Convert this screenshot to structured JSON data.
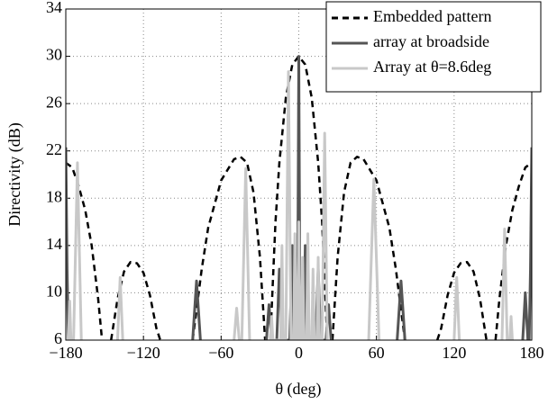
{
  "chart_data": {
    "type": "line",
    "xlabel": "θ (deg)",
    "ylabel": "Directivity (dB)",
    "xlim": [
      -180,
      180
    ],
    "xticks": [
      {
        "value": -180,
        "label": "−180"
      },
      {
        "value": -120,
        "label": "−120"
      },
      {
        "value": -60,
        "label": "−60"
      },
      0,
      60,
      120,
      180
    ],
    "ylim": [
      6,
      34
    ],
    "yticks": [
      6,
      10,
      14,
      18,
      22,
      26,
      30,
      34
    ],
    "grid": true,
    "legend": "upper right",
    "series": [
      {
        "name": "Embedded pattern",
        "color": "#000000",
        "style": "dashed",
        "x": [
          -180,
          -175,
          -170,
          -165,
          -160,
          -155,
          -152,
          -149,
          -145,
          -140,
          -135,
          -130,
          -125,
          -120,
          -115,
          -110,
          -107,
          -95,
          -82,
          -75,
          -70,
          -60,
          -50,
          -45,
          -40,
          -35,
          -30,
          -26,
          -24,
          -22,
          -18,
          -15,
          -10,
          -5,
          0,
          5,
          10,
          15,
          18,
          22,
          24,
          26,
          30,
          35,
          40,
          45,
          50,
          60,
          70,
          75,
          82,
          95,
          107,
          110,
          115,
          120,
          125,
          130,
          135,
          140,
          145,
          149,
          152,
          155,
          160,
          165,
          170,
          175,
          180
        ],
        "values": [
          21,
          20.6,
          19,
          17,
          14,
          9.5,
          6,
          null,
          6,
          9.5,
          11.8,
          12.6,
          12.5,
          11.7,
          9.8,
          7,
          6,
          null,
          6,
          12,
          15.5,
          19.5,
          21.3,
          21.5,
          21,
          18.5,
          13,
          6,
          null,
          6,
          16,
          21,
          26.5,
          29.3,
          30,
          29.3,
          26.5,
          21,
          16,
          6,
          null,
          6,
          13,
          18.5,
          21,
          21.5,
          21.3,
          19.5,
          15.5,
          12,
          6,
          null,
          6,
          7,
          9.8,
          11.7,
          12.5,
          12.6,
          11.8,
          9.5,
          6,
          null,
          6,
          9.5,
          14,
          17,
          19,
          20.6,
          21
        ]
      },
      {
        "name": "array at broadside",
        "color": "#555555",
        "style": "solid",
        "x": [
          -180,
          -179,
          -178,
          -170,
          -82,
          -79,
          -76,
          -50,
          -25,
          -23,
          -21,
          -17,
          -15,
          -13,
          -7,
          -5,
          -4,
          -3,
          -2,
          -1,
          0,
          1,
          2,
          3,
          4,
          5,
          7,
          13,
          15,
          17,
          21,
          23,
          25,
          50,
          76,
          79,
          82,
          150,
          173,
          175,
          177,
          178,
          179,
          180
        ],
        "values": [
          22.3,
          12,
          6,
          null,
          6,
          11,
          6,
          null,
          6,
          9,
          6,
          6,
          12,
          6,
          6,
          14,
          6,
          6,
          10,
          6,
          30,
          6,
          10,
          6,
          6,
          14,
          6,
          6,
          12,
          6,
          6,
          9,
          6,
          null,
          6,
          11,
          6,
          null,
          6,
          10,
          6,
          6,
          12,
          22.3
        ]
      },
      {
        "name": "Array at θ=8.6deg",
        "color": "#c8c8c8",
        "style": "solid",
        "x": [
          -178,
          -177,
          -176,
          -175,
          -174,
          -171,
          -168,
          -150,
          -140,
          -138,
          -136,
          -100,
          -50,
          -48,
          -46,
          -45,
          -44,
          -41,
          -38,
          -30,
          -22,
          -21,
          -20,
          -14,
          -13,
          -12,
          -10,
          -8,
          -6,
          -4,
          -3,
          -2,
          -1,
          0,
          1,
          2,
          3,
          4,
          6,
          7,
          8,
          10,
          11,
          12,
          14,
          15,
          16,
          18,
          20,
          22,
          40,
          54,
          58,
          62,
          100,
          120,
          122,
          124,
          140,
          157,
          159,
          161,
          163,
          164,
          165
        ],
        "values": [
          6,
          9.3,
          6,
          null,
          6,
          21,
          6,
          null,
          6,
          11.3,
          6,
          null,
          6,
          8.7,
          6,
          null,
          6,
          20.5,
          6,
          null,
          6,
          8,
          6,
          6,
          14,
          6,
          6,
          28.7,
          6,
          6,
          15,
          6,
          6,
          16,
          6,
          6,
          13,
          6,
          6,
          15,
          6,
          6,
          12,
          6,
          6,
          13,
          6,
          6,
          23.5,
          6,
          null,
          6,
          19.6,
          6,
          null,
          6,
          11.3,
          6,
          null,
          6,
          15.4,
          6,
          6,
          8,
          6
        ]
      }
    ]
  }
}
